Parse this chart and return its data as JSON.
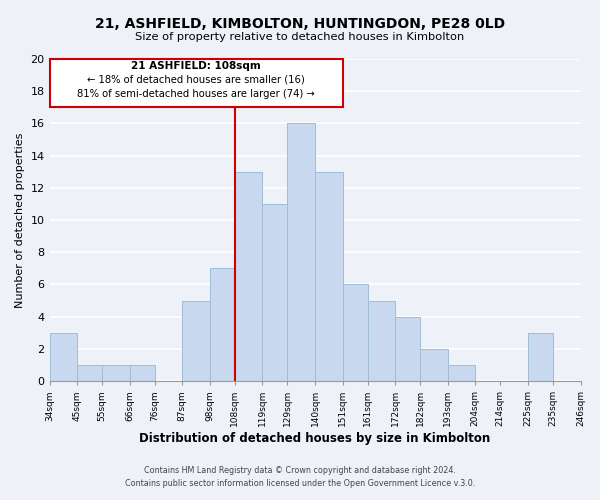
{
  "title": "21, ASHFIELD, KIMBOLTON, HUNTINGDON, PE28 0LD",
  "subtitle": "Size of property relative to detached houses in Kimbolton",
  "xlabel": "Distribution of detached houses by size in Kimbolton",
  "ylabel": "Number of detached properties",
  "bar_edges": [
    34,
    45,
    55,
    66,
    76,
    87,
    98,
    108,
    119,
    129,
    140,
    151,
    161,
    172,
    182,
    193,
    204,
    214,
    225,
    235,
    246
  ],
  "bar_heights": [
    3,
    1,
    1,
    1,
    0,
    5,
    7,
    13,
    11,
    16,
    13,
    6,
    5,
    4,
    2,
    1,
    0,
    0,
    3,
    0
  ],
  "bar_color": "#c8d8ee",
  "bar_edgecolor": "#a0bcd8",
  "reference_line_x": 108,
  "reference_line_color": "#cc0000",
  "ylim": [
    0,
    20
  ],
  "yticks": [
    0,
    2,
    4,
    6,
    8,
    10,
    12,
    14,
    16,
    18,
    20
  ],
  "annotation_title": "21 ASHFIELD: 108sqm",
  "annotation_line1": "← 18% of detached houses are smaller (16)",
  "annotation_line2": "81% of semi-detached houses are larger (74) →",
  "footer_line1": "Contains HM Land Registry data © Crown copyright and database right 2024.",
  "footer_line2": "Contains public sector information licensed under the Open Government Licence v.3.0.",
  "background_color": "#eef2f8",
  "grid_color": "#ffffff",
  "tick_labels": [
    "34sqm",
    "45sqm",
    "55sqm",
    "66sqm",
    "76sqm",
    "87sqm",
    "98sqm",
    "108sqm",
    "119sqm",
    "129sqm",
    "140sqm",
    "151sqm",
    "161sqm",
    "172sqm",
    "182sqm",
    "193sqm",
    "204sqm",
    "214sqm",
    "225sqm",
    "235sqm",
    "246sqm"
  ],
  "ann_box_color": "#cc0000"
}
